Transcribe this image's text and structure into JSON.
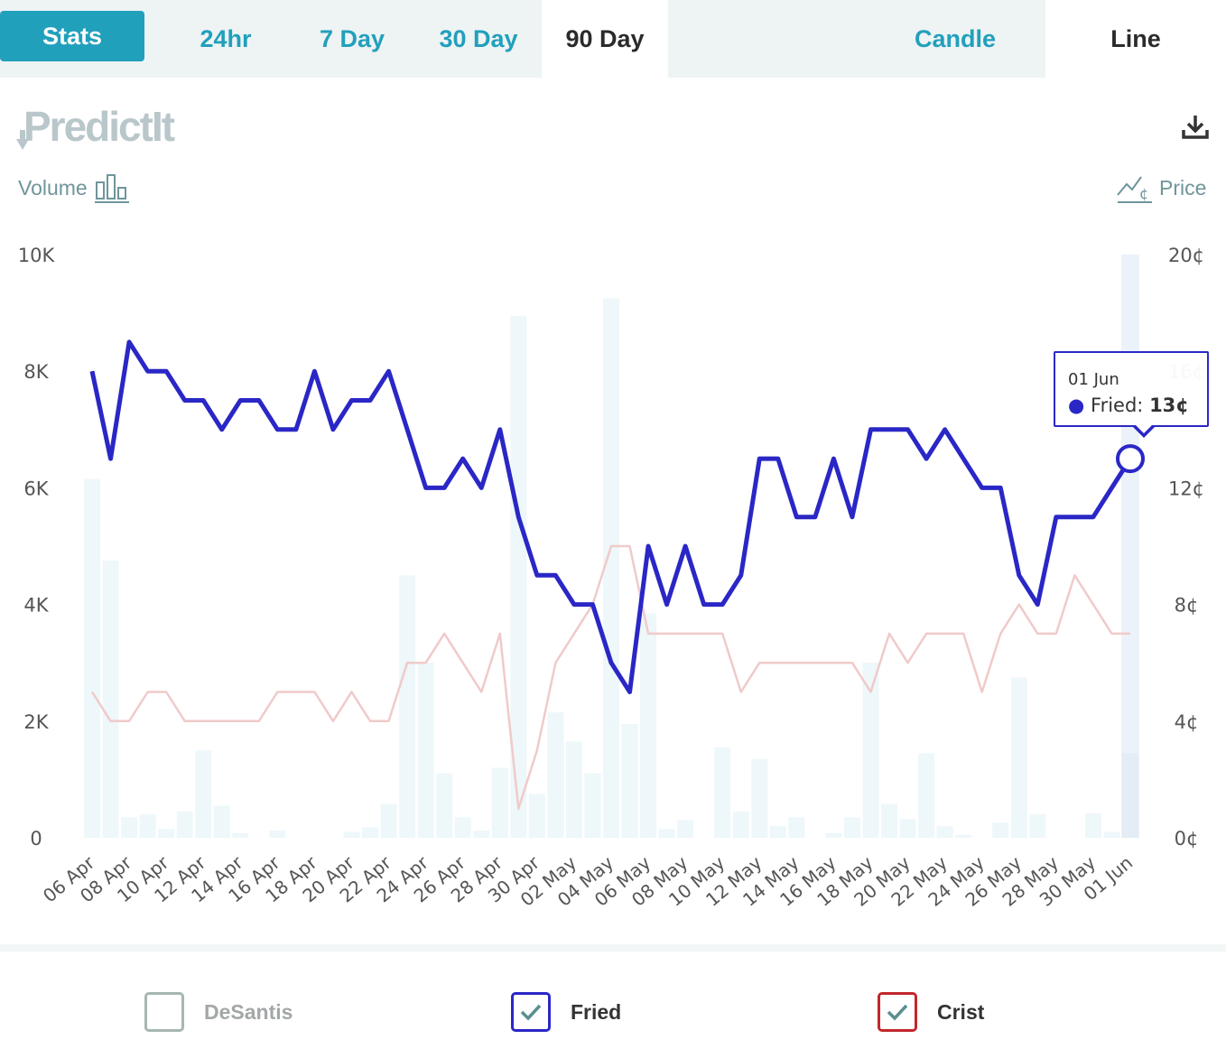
{
  "tabs": {
    "stats": "Stats",
    "range": [
      "24hr",
      "7 Day",
      "30 Day",
      "90 Day"
    ],
    "active_range": "90 Day",
    "chart_types": [
      "Candle",
      "Line"
    ],
    "active_chart_type": "Line"
  },
  "brand": {
    "logo_text": "PredictIt"
  },
  "toggles": {
    "volume": "Volume",
    "price": "Price"
  },
  "tooltip": {
    "date": "01 Jun",
    "series": "Fried",
    "value": "13¢"
  },
  "legend": [
    {
      "label": "DeSantis",
      "checked": false,
      "color": "#a7b6b2"
    },
    {
      "label": "Fried",
      "checked": true,
      "color": "#2a27c6"
    },
    {
      "label": "Crist",
      "checked": true,
      "color": "#c2272d"
    }
  ],
  "colors": {
    "accent": "#21a0bc",
    "fried_line": "#2a27c6",
    "crist_line": "#f0caca",
    "volume_bar": "#eef7fa",
    "volume_bar_highlight": "#e4ecf6"
  },
  "chart_data": {
    "type": "line",
    "x": [
      "06 Apr",
      "07 Apr",
      "08 Apr",
      "09 Apr",
      "10 Apr",
      "11 Apr",
      "12 Apr",
      "13 Apr",
      "14 Apr",
      "15 Apr",
      "16 Apr",
      "17 Apr",
      "18 Apr",
      "19 Apr",
      "20 Apr",
      "21 Apr",
      "22 Apr",
      "23 Apr",
      "24 Apr",
      "25 Apr",
      "26 Apr",
      "27 Apr",
      "28 Apr",
      "29 Apr",
      "30 Apr",
      "01 May",
      "02 May",
      "03 May",
      "04 May",
      "05 May",
      "06 May",
      "07 May",
      "08 May",
      "09 May",
      "10 May",
      "11 May",
      "12 May",
      "13 May",
      "14 May",
      "15 May",
      "16 May",
      "17 May",
      "18 May",
      "19 May",
      "20 May",
      "21 May",
      "22 May",
      "23 May",
      "24 May",
      "25 May",
      "26 May",
      "27 May",
      "28 May",
      "29 May",
      "30 May",
      "31 May",
      "01 Jun"
    ],
    "x_tick_labels": [
      "06 Apr",
      "08 Apr",
      "10 Apr",
      "12 Apr",
      "14 Apr",
      "16 Apr",
      "18 Apr",
      "20 Apr",
      "22 Apr",
      "24 Apr",
      "26 Apr",
      "28 Apr",
      "30 Apr",
      "02 May",
      "04 May",
      "06 May",
      "08 May",
      "10 May",
      "12 May",
      "14 May",
      "16 May",
      "18 May",
      "20 May",
      "22 May",
      "24 May",
      "26 May",
      "28 May",
      "30 May",
      "01 Jun"
    ],
    "series": [
      {
        "name": "Fried",
        "axis": "price",
        "unit": "¢",
        "values": [
          16,
          13,
          17,
          16,
          16,
          15,
          15,
          14,
          15,
          15,
          14,
          14,
          16,
          14,
          15,
          15,
          16,
          14,
          12,
          12,
          13,
          12,
          14,
          11,
          9,
          9,
          8,
          8,
          6,
          5,
          10,
          8,
          10,
          8,
          8,
          9,
          13,
          13,
          11,
          11,
          13,
          11,
          14,
          14,
          14,
          13,
          14,
          13,
          12,
          12,
          9,
          8,
          11,
          11,
          11,
          12,
          13
        ]
      },
      {
        "name": "Crist",
        "axis": "price",
        "unit": "¢",
        "values": [
          5,
          4,
          4,
          5,
          5,
          4,
          4,
          4,
          4,
          4,
          5,
          5,
          5,
          4,
          5,
          4,
          4,
          6,
          6,
          7,
          6,
          5,
          7,
          1,
          3,
          6,
          7,
          8,
          10,
          10,
          7,
          7,
          7,
          7,
          7,
          5,
          6,
          6,
          6,
          6,
          6,
          6,
          5,
          7,
          6,
          7,
          7,
          7,
          5,
          7,
          8,
          7,
          7,
          9,
          8,
          7,
          7
        ]
      },
      {
        "name": "Volume",
        "axis": "volume",
        "type": "bar",
        "values": [
          6150,
          4750,
          350,
          400,
          150,
          450,
          1500,
          550,
          80,
          0,
          120,
          0,
          0,
          0,
          100,
          180,
          580,
          4500,
          3000,
          1100,
          350,
          120,
          1200,
          8950,
          750,
          2150,
          1650,
          1100,
          9250,
          1950,
          3850,
          150,
          300,
          0,
          1550,
          450,
          1350,
          200,
          350,
          0,
          80,
          350,
          3000,
          580,
          320,
          1450,
          200,
          50,
          0,
          260,
          2750,
          400,
          0,
          0,
          420,
          100,
          1450
        ]
      }
    ],
    "title": "",
    "xlabel": "",
    "y_left": {
      "label": "Volume",
      "ticks": [
        "0",
        "2K",
        "4K",
        "6K",
        "8K",
        "10K"
      ],
      "lim": [
        0,
        10000
      ]
    },
    "y_right": {
      "label": "Price",
      "ticks": [
        "0¢",
        "4¢",
        "8¢",
        "12¢",
        "16¢",
        "20¢"
      ],
      "lim": [
        0,
        20
      ]
    },
    "highlight": {
      "series": "Fried",
      "x": "01 Jun",
      "value": 13
    },
    "grid": false
  }
}
